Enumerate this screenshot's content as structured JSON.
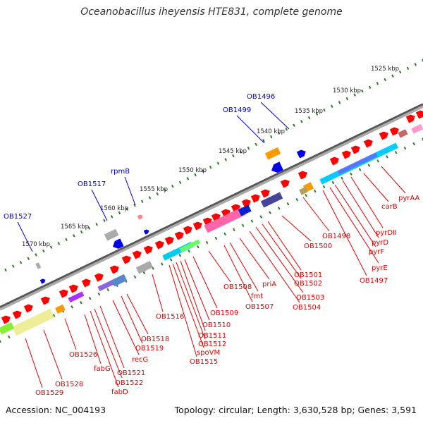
{
  "title": "Oceanobacillus iheyensis HTE831, complete genome",
  "footer": {
    "accession": "Accession: NC_004193",
    "stats": "Topology: circular; Length: 3,630,528 bp; Genes: 3,591"
  },
  "colors": {
    "label_red": "#e00000",
    "label_blue": "#0000cc",
    "ruler_green": "#2a7a2a",
    "backbone_gray": "#888888",
    "gene_red": "#ff0000",
    "gene_blue": "#0000ee",
    "gene_orange": "#ff9900",
    "gene_gray": "#aaaaaa"
  },
  "ruler_ticks": [
    "1525 kbp",
    "1530 kbp",
    "1535 kbp",
    "1540 kbp",
    "1545 kbp",
    "1550 kbp",
    "1555 kbp",
    "1560 kbp",
    "1565 kbp",
    "1570 kbp"
  ],
  "blue_labels": [
    "OB1496",
    "OB1499",
    "rpmB",
    "OB1517",
    "OB1527"
  ],
  "red_labels": [
    "pyrAA",
    "carB",
    "pyrDII",
    "pyrD",
    "pyrF",
    "pyrE",
    "OB1497",
    "OB1498",
    "OB1500",
    "OB1501",
    "OB1502",
    "OB1503",
    "OB1504",
    "priA",
    "fmt",
    "OB1507",
    "OB1508",
    "OB1509",
    "OB1510",
    "OB1511",
    "OB1512",
    "spoVM",
    "OB1515",
    "OB1516",
    "OB1518",
    "OB1519",
    "recG",
    "OB1521",
    "OB1522",
    "fabD",
    "fabG",
    "OB1526",
    "OB1528",
    "OB1529"
  ]
}
